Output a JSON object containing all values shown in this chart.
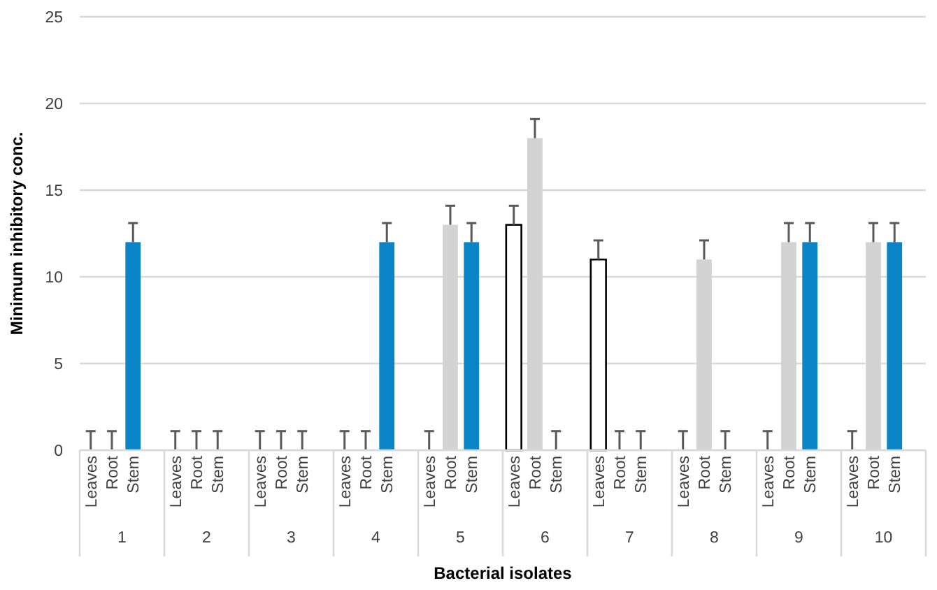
{
  "chart_data": {
    "type": "bar",
    "xlabel": "Bacterial isolates",
    "ylabel": "Minimum inhibitory conc.",
    "categories": [
      "1",
      "2",
      "3",
      "4",
      "5",
      "6",
      "7",
      "8",
      "9",
      "10"
    ],
    "series": [
      {
        "name": "Leaves",
        "color": "#ffffff",
        "values": [
          0,
          0,
          0,
          0,
          0,
          13,
          11,
          0,
          0,
          0
        ],
        "errors": [
          [
            0,
            1.1
          ],
          [
            0,
            1.1
          ],
          [
            0,
            1.1
          ],
          [
            0,
            1.1
          ],
          [
            0,
            1.1
          ],
          [
            13,
            14.1
          ],
          [
            11,
            12.1
          ],
          [
            0,
            1.1
          ],
          [
            0,
            1.1
          ],
          [
            0,
            1.1
          ]
        ]
      },
      {
        "name": "Root",
        "color": "#d3d3d3",
        "values": [
          0,
          0,
          0,
          0,
          13,
          18,
          0,
          11,
          12,
          12
        ],
        "errors": [
          [
            0,
            1.1
          ],
          [
            0,
            1.1
          ],
          [
            0,
            1.1
          ],
          [
            0,
            1.1
          ],
          [
            13,
            14.1
          ],
          [
            18,
            19.1
          ],
          [
            0,
            1.1
          ],
          [
            11,
            12.1
          ],
          [
            12,
            13.1
          ],
          [
            12,
            13.1
          ]
        ]
      },
      {
        "name": "Stem",
        "color": "#0a84c6",
        "values": [
          12,
          0,
          0,
          12,
          12,
          0,
          0,
          0,
          12,
          12
        ],
        "errors": [
          [
            12,
            13.1
          ],
          [
            0,
            1.1
          ],
          [
            0,
            1.1
          ],
          [
            12,
            13.1
          ],
          [
            12,
            13.1
          ],
          [
            0,
            1.1
          ],
          [
            0,
            1.1
          ],
          [
            0,
            1.1
          ],
          [
            12,
            13.1
          ],
          [
            12,
            13.1
          ]
        ]
      }
    ],
    "ylim": [
      0,
      25
    ],
    "yticks": [
      0,
      5,
      10,
      15,
      20,
      25
    ],
    "grid": "y",
    "legend": false
  }
}
